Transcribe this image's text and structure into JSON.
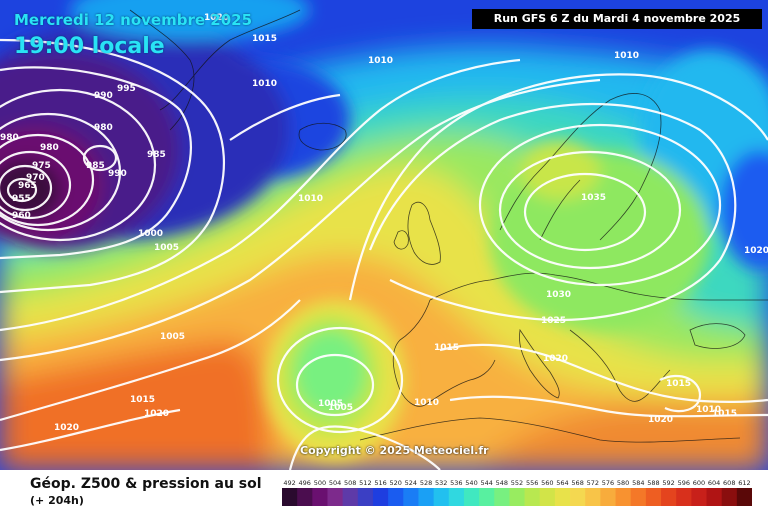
{
  "header": {
    "valid_date": "Mercredi 12 novembre 2025",
    "valid_time": "19:00 locale",
    "run_info": "Run GFS 6 Z du Mardi 4 novembre 2025"
  },
  "map": {
    "copyright": "Copyright © 2025 Meteociel.fr",
    "pressure_labels": [
      {
        "text": "1015"
      },
      {
        "text": "1010"
      },
      {
        "text": "1020"
      },
      {
        "text": "1010"
      },
      {
        "text": "1010"
      },
      {
        "text": "995"
      },
      {
        "text": "990"
      },
      {
        "text": "980"
      },
      {
        "text": "980"
      },
      {
        "text": "980"
      },
      {
        "text": "975"
      },
      {
        "text": "970"
      },
      {
        "text": "965"
      },
      {
        "text": "955"
      },
      {
        "text": "960"
      },
      {
        "text": "985"
      },
      {
        "text": "990"
      },
      {
        "text": "985"
      },
      {
        "text": "1010"
      },
      {
        "text": "1000"
      },
      {
        "text": "1005"
      },
      {
        "text": "1035"
      },
      {
        "text": "1020"
      },
      {
        "text": "1030"
      },
      {
        "text": "1025"
      },
      {
        "text": "1020"
      },
      {
        "text": "1015"
      },
      {
        "text": "1005"
      },
      {
        "text": "1005"
      },
      {
        "text": "1010"
      },
      {
        "text": "1015"
      },
      {
        "text": "1020"
      },
      {
        "text": "1020"
      },
      {
        "text": "1015"
      },
      {
        "text": "1010"
      },
      {
        "text": "1015"
      },
      {
        "text": "1005"
      },
      {
        "text": "1020"
      }
    ]
  },
  "footer": {
    "product": "Géop. Z500 & pression au sol",
    "forecast_step": "(+ 204h)"
  },
  "legend": {
    "values": [
      "492",
      "496",
      "500",
      "504",
      "508",
      "512",
      "516",
      "520",
      "524",
      "528",
      "532",
      "536",
      "540",
      "544",
      "548",
      "552",
      "556",
      "560",
      "564",
      "568",
      "572",
      "576",
      "580",
      "584",
      "588",
      "592",
      "596",
      "600",
      "604",
      "608",
      "612"
    ],
    "colors": [
      "#2a0a2e",
      "#4b0d4f",
      "#6a1070",
      "#7d2a8c",
      "#5e3aa8",
      "#3b3fc4",
      "#1e3ee0",
      "#1a5cf0",
      "#1a7df5",
      "#1aa0f5",
      "#22c0ef",
      "#30d8e0",
      "#40e8c0",
      "#58f0a0",
      "#78f080",
      "#98ec60",
      "#b8e850",
      "#d2e448",
      "#e8e24a",
      "#f4d850",
      "#f8c448",
      "#f8ac3c",
      "#f89230",
      "#f47828",
      "#ee5e22",
      "#e4441e",
      "#d8301c",
      "#c8201a",
      "#b01414",
      "#8a0e0e",
      "#5a0808"
    ]
  }
}
